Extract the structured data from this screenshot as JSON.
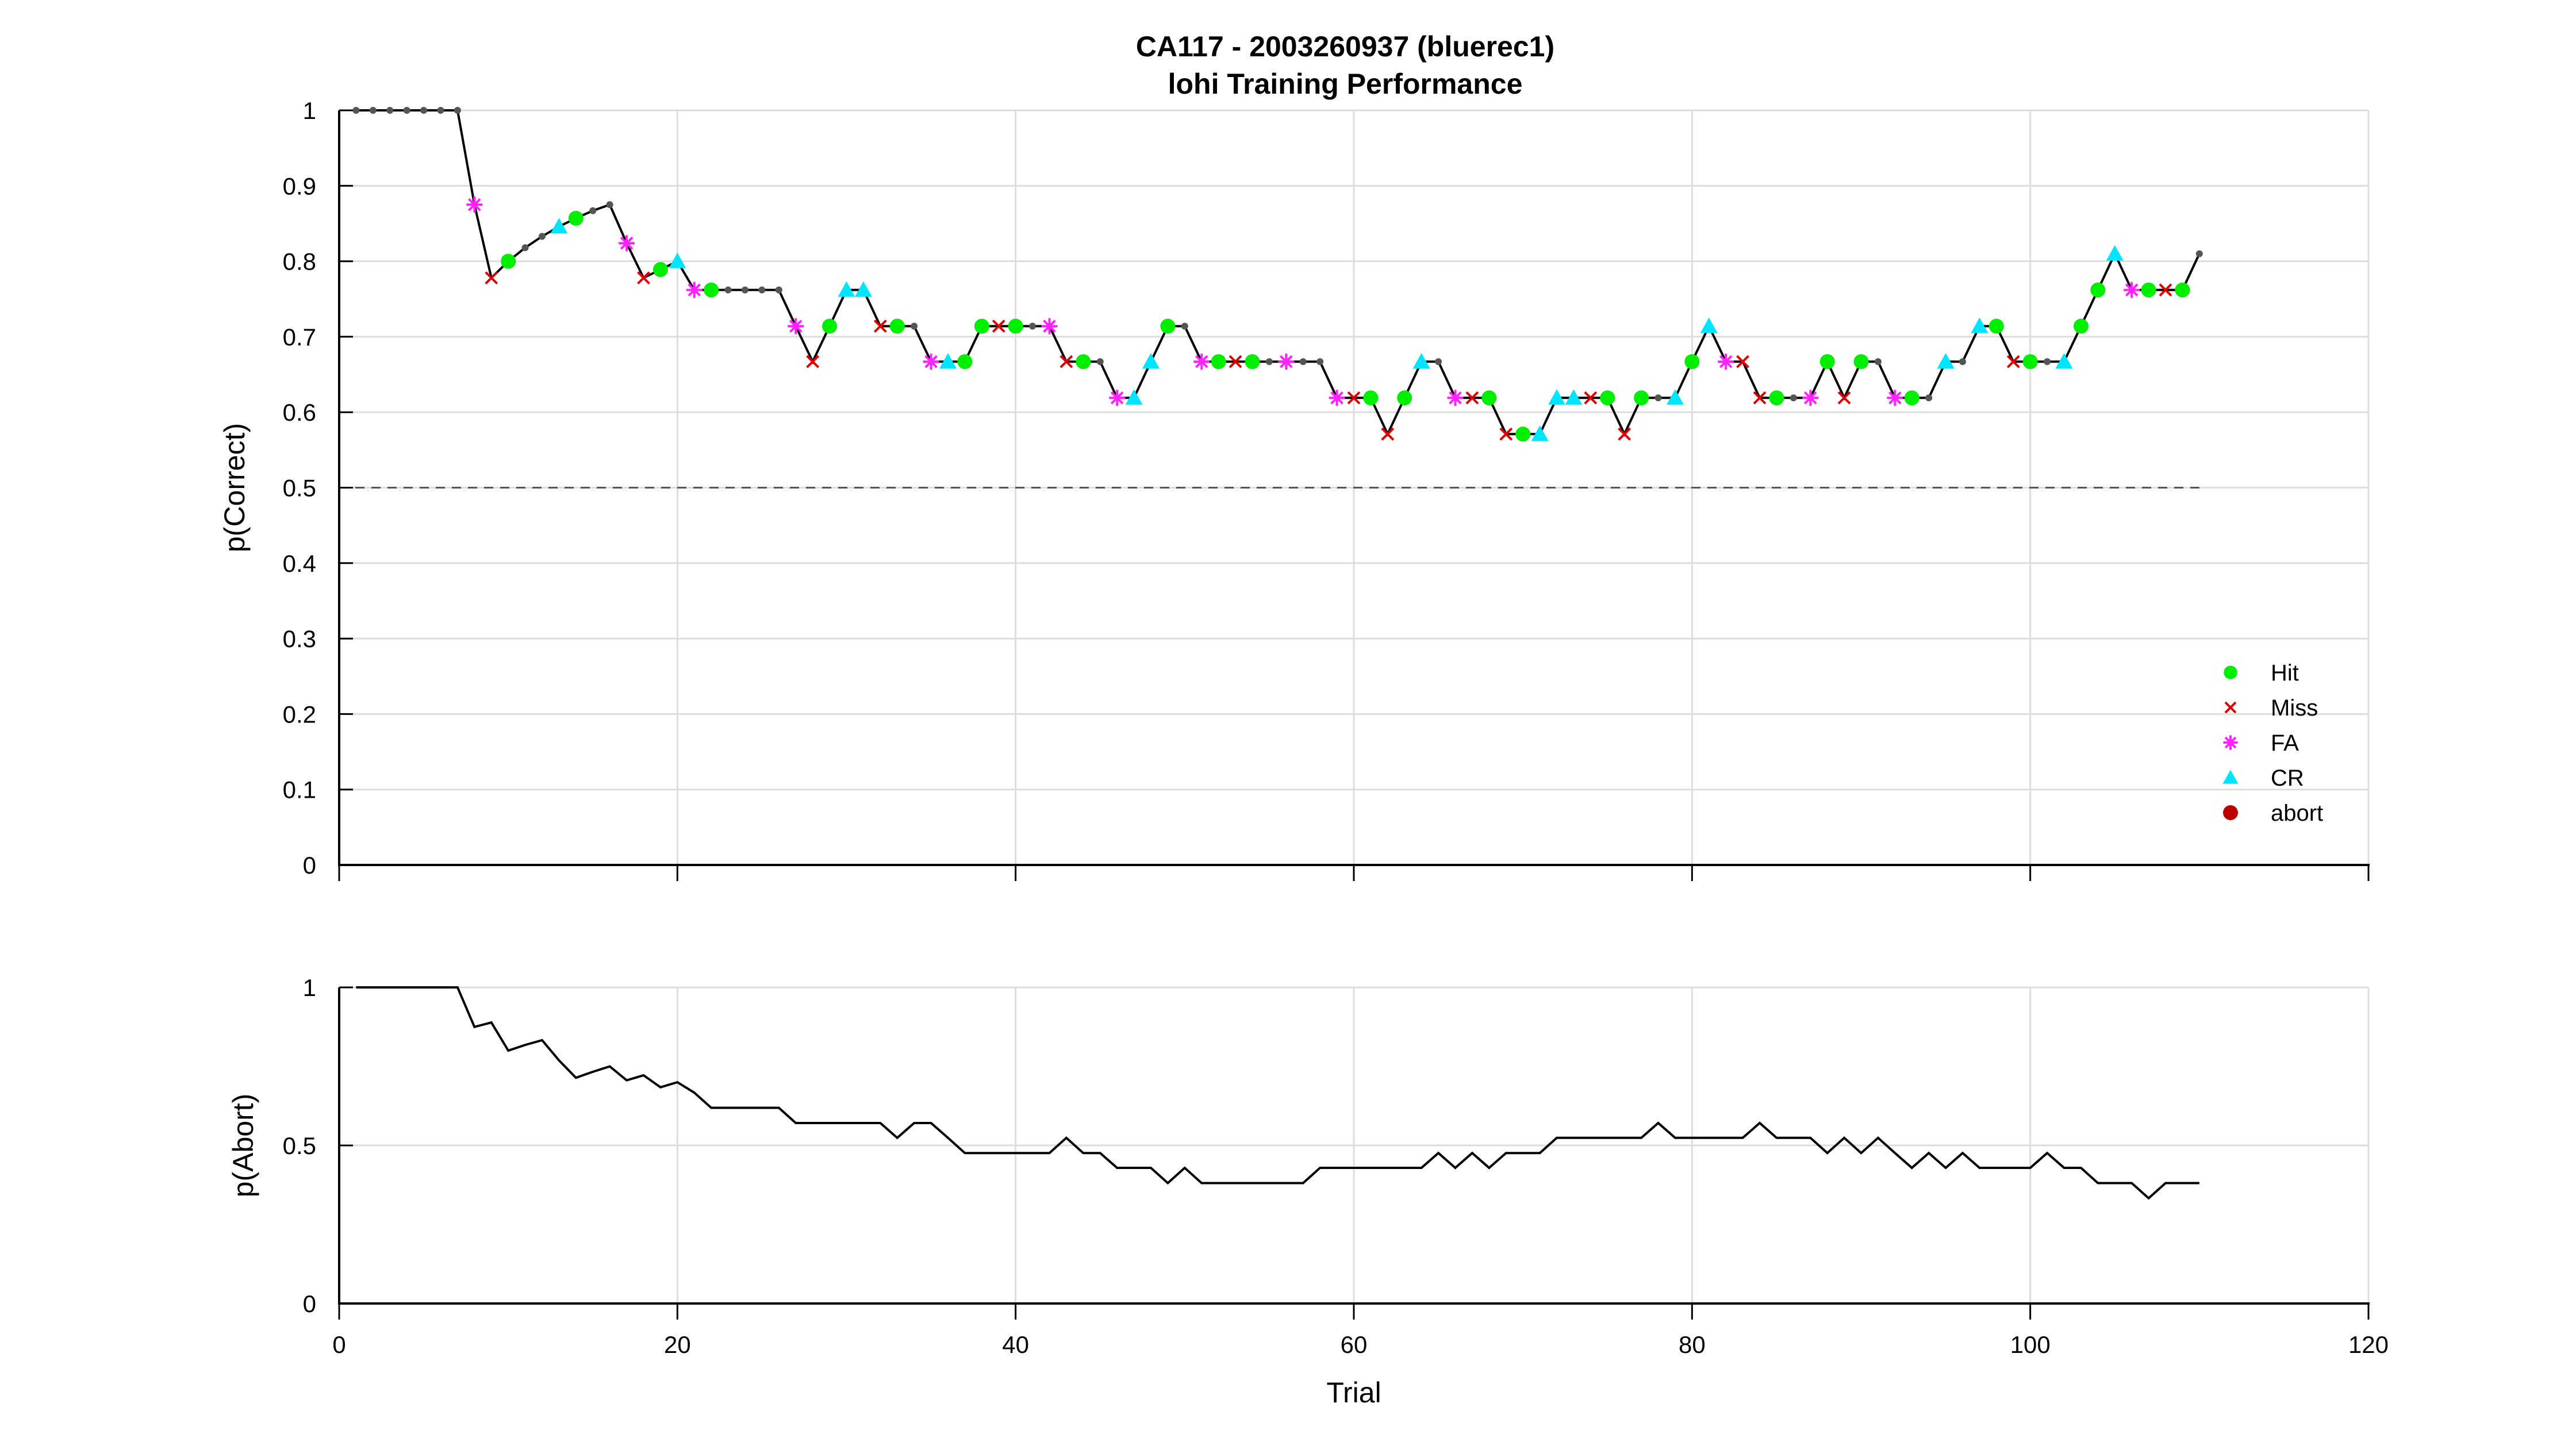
{
  "figure_title": [
    "CA117 - 2003260937 (bluerec1)",
    "lohi Training Performance"
  ],
  "colors": {
    "hit": "#00ee00",
    "miss": "#dd0000",
    "fa": "#ff22ff",
    "cr": "#00e5ff",
    "abort": "#bb0000",
    "line": "#000000",
    "chance": "#555555",
    "grid": "#dddddd"
  },
  "chart_data": [
    {
      "type": "line",
      "name": "performance",
      "xlabel": "",
      "ylabel": "p(Correct)",
      "xlim": [
        0,
        120
      ],
      "ylim": [
        0,
        1
      ],
      "xticks": [
        0,
        20,
        40,
        60,
        80,
        100,
        120
      ],
      "xtick_labels_visible": false,
      "yticks": [
        0,
        0.1,
        0.2,
        0.3,
        0.4,
        0.5,
        0.6,
        0.7,
        0.8,
        0.9,
        1
      ],
      "ytick_labels": [
        "0",
        "0.1",
        "0.2",
        "0.3",
        "0.4",
        "0.5",
        "0.6",
        "0.7",
        "0.8",
        "0.9",
        "1"
      ],
      "grid": true,
      "chance_line": {
        "y": 0.5,
        "x": [
          0,
          110
        ],
        "style": "dashed"
      },
      "legend": {
        "placement": "bottom-right",
        "entries": [
          {
            "label": "Hit",
            "marker": "dot",
            "color": "#00ee00"
          },
          {
            "label": "Miss",
            "marker": "x",
            "color": "#dd0000"
          },
          {
            "label": "FA",
            "marker": "asterisk",
            "color": "#ff22ff"
          },
          {
            "label": "CR",
            "marker": "triangle",
            "color": "#00e5ff"
          },
          {
            "label": "abort",
            "marker": "dot",
            "color": "#bb0000"
          }
        ]
      },
      "x": [
        1,
        2,
        3,
        4,
        5,
        6,
        7,
        8,
        9,
        10,
        11,
        12,
        13,
        14,
        15,
        16,
        17,
        18,
        19,
        20,
        21,
        22,
        23,
        24,
        25,
        26,
        27,
        28,
        29,
        30,
        31,
        32,
        33,
        34,
        35,
        36,
        37,
        38,
        39,
        40,
        41,
        42,
        43,
        44,
        45,
        46,
        47,
        48,
        49,
        50,
        51,
        52,
        53,
        54,
        55,
        56,
        57,
        58,
        59,
        60,
        61,
        62,
        63,
        64,
        65,
        66,
        67,
        68,
        69,
        70,
        71,
        72,
        73,
        74,
        75,
        76,
        77,
        78,
        79,
        80,
        81,
        82,
        83,
        84,
        85,
        86,
        87,
        88,
        89,
        90,
        91,
        92,
        93,
        94,
        95,
        96,
        97,
        98,
        99,
        100,
        101,
        102,
        103,
        104,
        105,
        106,
        107,
        108,
        109,
        110
      ],
      "y": [
        1,
        1,
        1,
        1,
        1,
        1,
        1,
        0.875,
        0.778,
        0.8,
        0.818,
        0.833,
        0.846,
        0.857,
        0.867,
        0.875,
        0.824,
        0.778,
        0.789,
        0.8,
        0.762,
        0.762,
        0.762,
        0.762,
        0.762,
        0.762,
        0.714,
        0.667,
        0.714,
        0.762,
        0.762,
        0.714,
        0.714,
        0.714,
        0.667,
        0.667,
        0.667,
        0.714,
        0.714,
        0.714,
        0.714,
        0.714,
        0.667,
        0.667,
        0.667,
        0.619,
        0.619,
        0.667,
        0.714,
        0.714,
        0.667,
        0.667,
        0.667,
        0.667,
        0.667,
        0.667,
        0.667,
        0.667,
        0.619,
        0.619,
        0.619,
        0.571,
        0.619,
        0.667,
        0.667,
        0.619,
        0.619,
        0.619,
        0.571,
        0.571,
        0.571,
        0.619,
        0.619,
        0.619,
        0.619,
        0.571,
        0.619,
        0.619,
        0.619,
        0.667,
        0.714,
        0.667,
        0.667,
        0.619,
        0.619,
        0.619,
        0.619,
        0.667,
        0.619,
        0.667,
        0.667,
        0.619,
        0.619,
        0.619,
        0.667,
        0.667,
        0.714,
        0.714,
        0.667,
        0.667,
        0.667,
        0.667,
        0.714,
        0.762,
        0.81,
        0.762,
        0.762,
        0.762,
        0.762,
        0.81
      ],
      "outcomes": [
        "abort",
        "abort",
        "abort",
        "abort",
        "abort",
        "abort",
        "abort",
        "FA",
        "Miss",
        "Hit",
        "abort",
        "abort",
        "CR",
        "Hit",
        "abort",
        "abort",
        "FA",
        "Miss",
        "Hit",
        "CR",
        "FA",
        "Hit",
        "abort",
        "abort",
        "abort",
        "abort",
        "FA",
        "Miss",
        "Hit",
        "CR",
        "CR",
        "Miss",
        "Hit",
        "abort",
        "FA",
        "CR",
        "Hit",
        "Hit",
        "Miss",
        "Hit",
        "abort",
        "FA",
        "Miss",
        "Hit",
        "abort",
        "FA",
        "CR",
        "CR",
        "Hit",
        "abort",
        "FA",
        "Hit",
        "Miss",
        "Hit",
        "abort",
        "FA",
        "abort",
        "abort",
        "FA",
        "Miss",
        "Hit",
        "Miss",
        "Hit",
        "CR",
        "abort",
        "FA",
        "Miss",
        "Hit",
        "Miss",
        "Hit",
        "CR",
        "CR",
        "CR",
        "Miss",
        "Hit",
        "Miss",
        "Hit",
        "abort",
        "CR",
        "Hit",
        "CR",
        "FA",
        "Miss",
        "Miss",
        "Hit",
        "abort",
        "FA",
        "Hit",
        "Miss",
        "Hit",
        "abort",
        "FA",
        "Hit",
        "abort",
        "CR",
        "abort",
        "CR",
        "Hit",
        "Miss",
        "Hit",
        "abort",
        "CR",
        "Hit",
        "Hit",
        "CR",
        "FA",
        "Hit",
        "Miss",
        "Hit",
        "abort"
      ]
    },
    {
      "type": "line",
      "name": "abort",
      "xlabel": "Trial",
      "ylabel": "p(Abort)",
      "xlim": [
        0,
        120
      ],
      "ylim": [
        0,
        1
      ],
      "xticks": [
        0,
        20,
        40,
        60,
        80,
        100,
        120
      ],
      "xtick_labels": [
        "0",
        "20",
        "40",
        "60",
        "80",
        "100",
        "120"
      ],
      "yticks": [
        0,
        0.5,
        1
      ],
      "ytick_labels": [
        "0",
        "0.5",
        "1"
      ],
      "grid": true,
      "x": [
        1,
        2,
        3,
        4,
        5,
        6,
        7,
        8,
        9,
        10,
        11,
        12,
        13,
        14,
        15,
        16,
        17,
        18,
        19,
        20,
        21,
        22,
        23,
        24,
        25,
        26,
        27,
        28,
        29,
        30,
        31,
        32,
        33,
        34,
        35,
        36,
        37,
        38,
        39,
        40,
        41,
        42,
        43,
        44,
        45,
        46,
        47,
        48,
        49,
        50,
        51,
        52,
        53,
        54,
        55,
        56,
        57,
        58,
        59,
        60,
        61,
        62,
        63,
        64,
        65,
        66,
        67,
        68,
        69,
        70,
        71,
        72,
        73,
        74,
        75,
        76,
        77,
        78,
        79,
        80,
        81,
        82,
        83,
        84,
        85,
        86,
        87,
        88,
        89,
        90,
        91,
        92,
        93,
        94,
        95,
        96,
        97,
        98,
        99,
        100,
        101,
        102,
        103,
        104,
        105,
        106,
        107,
        108,
        109,
        110
      ],
      "y": [
        1,
        1,
        1,
        1,
        1,
        1,
        1,
        0.875,
        0.889,
        0.8,
        0.818,
        0.833,
        0.769,
        0.714,
        0.733,
        0.75,
        0.706,
        0.722,
        0.684,
        0.7,
        0.667,
        0.619,
        0.619,
        0.619,
        0.619,
        0.619,
        0.571,
        0.571,
        0.571,
        0.571,
        0.571,
        0.571,
        0.524,
        0.571,
        0.571,
        0.524,
        0.476,
        0.476,
        0.476,
        0.476,
        0.476,
        0.476,
        0.524,
        0.476,
        0.476,
        0.429,
        0.429,
        0.429,
        0.381,
        0.429,
        0.381,
        0.381,
        0.381,
        0.381,
        0.381,
        0.381,
        0.381,
        0.429,
        0.429,
        0.429,
        0.429,
        0.429,
        0.429,
        0.429,
        0.476,
        0.429,
        0.476,
        0.429,
        0.476,
        0.476,
        0.476,
        0.524,
        0.524,
        0.524,
        0.524,
        0.524,
        0.524,
        0.571,
        0.524,
        0.524,
        0.524,
        0.524,
        0.524,
        0.571,
        0.524,
        0.524,
        0.524,
        0.476,
        0.524,
        0.476,
        0.524,
        0.476,
        0.429,
        0.476,
        0.429,
        0.476,
        0.429,
        0.429,
        0.429,
        0.429,
        0.476,
        0.429,
        0.429,
        0.381,
        0.381,
        0.381,
        0.333,
        0.381,
        0.381,
        0.381
      ]
    }
  ]
}
